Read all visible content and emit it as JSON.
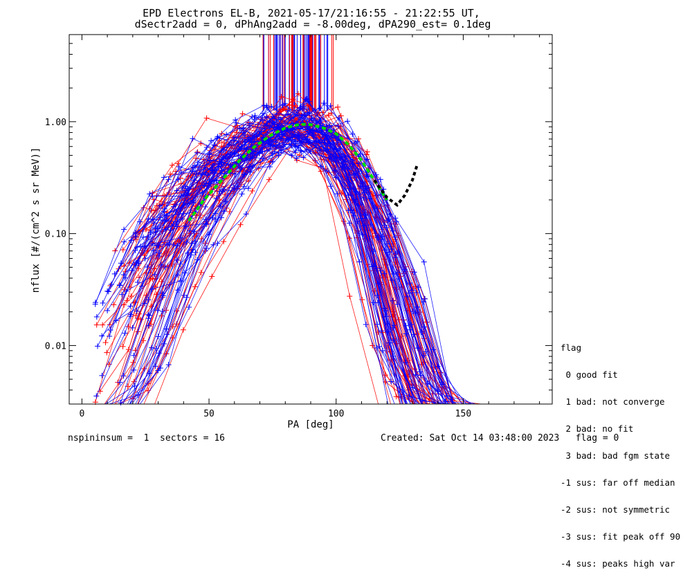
{
  "chart_data": {
    "type": "line",
    "title": "EPD Electrons EL-B, 2021-05-17/21:16:55 - 21:22:55 UT,",
    "subtitle": "dSectr2add = 0, dPhAng2add = -8.00deg, dPA290_est=   0.1deg",
    "xlabel": "PA [deg]",
    "ylabel": "nflux [#/(cm^2 s sr MeV)]",
    "xlim": [
      -5,
      185
    ],
    "ylim": [
      0.003,
      6.0
    ],
    "yscale": "log",
    "x_ticks": [
      0,
      50,
      100,
      150
    ],
    "y_ticks": [
      0.01,
      0.1,
      1.0
    ],
    "y_tick_labels": [
      "0.01",
      "0.10",
      "1.00"
    ],
    "fit_curve": {
      "color": "#00dd00",
      "x": [
        42,
        48,
        55,
        62,
        68,
        74,
        80,
        86,
        90,
        95,
        100,
        105,
        110,
        115,
        120
      ],
      "y": [
        0.13,
        0.2,
        0.3,
        0.45,
        0.6,
        0.75,
        0.88,
        0.95,
        0.94,
        0.88,
        0.78,
        0.62,
        0.45,
        0.3,
        0.2
      ]
    },
    "black_curve": {
      "color": "#000000",
      "x": [
        115,
        120,
        124,
        127,
        130,
        132
      ],
      "y": [
        0.3,
        0.21,
        0.18,
        0.22,
        0.3,
        0.42
      ]
    },
    "series": [
      {
        "color": "#ff0000",
        "count": 60
      },
      {
        "color": "#0000ff",
        "count": 60
      }
    ]
  },
  "flag_legend": {
    "title": "flag",
    "items": [
      " 0 good fit",
      " 1 bad: not converge",
      " 2 bad: no fit",
      " 3 bad: bad fgm state",
      "-1 sus: far off median",
      "-2 sus: not symmetric",
      "-3 sus: fit peak off 90",
      "-4 sus: peaks high var"
    ]
  },
  "footer": {
    "left": "nspininsum =  1  sectors = 16",
    "right": "Created: Sat Oct 14 03:48:00 2023   flag = 0"
  }
}
